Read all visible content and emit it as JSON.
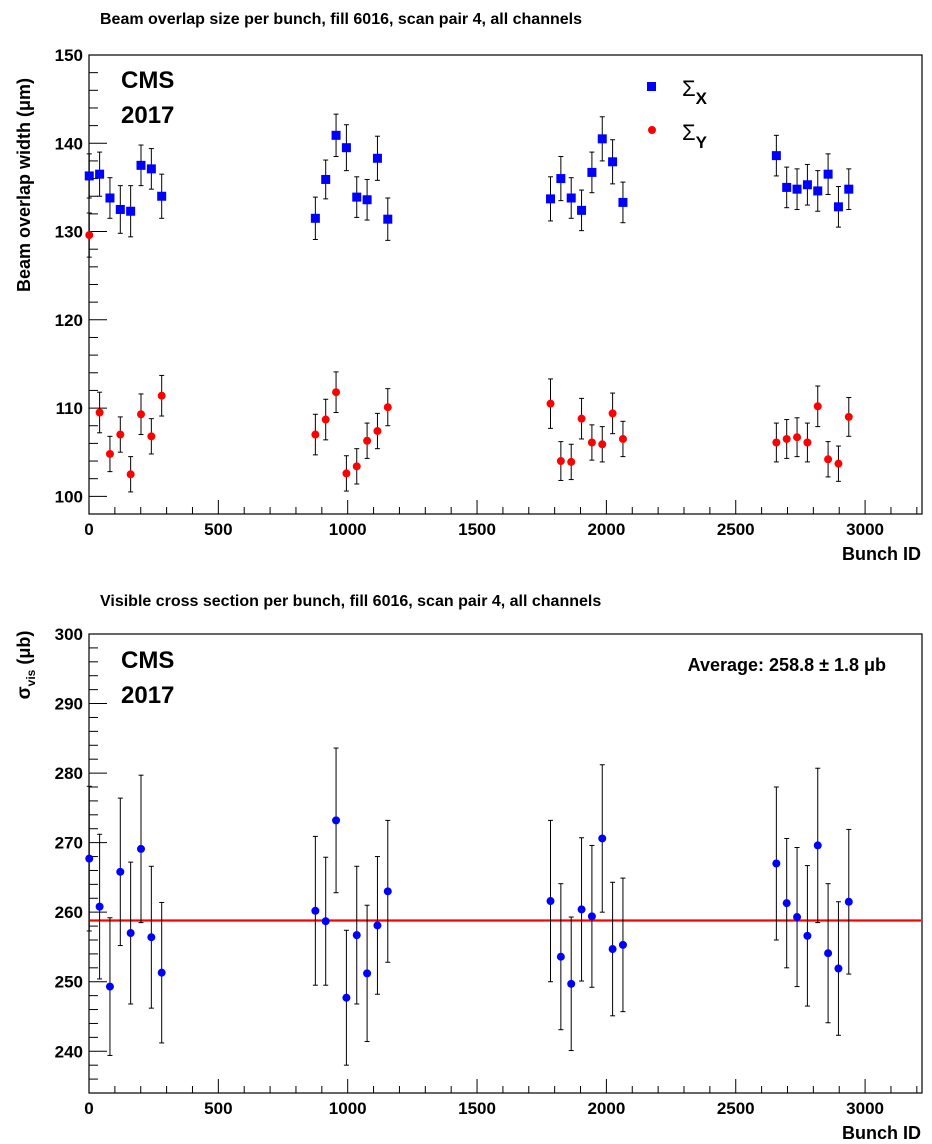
{
  "chart_data": [
    {
      "type": "scatter",
      "title": "Beam overlap size per bunch, fill 6016, scan pair 4, all channels",
      "xlabel": "Bunch ID",
      "ylabel": "Beam overlap width (μm)",
      "xlim": [
        0,
        3220
      ],
      "ylim": [
        98,
        150
      ],
      "xticks": [
        0,
        500,
        1000,
        1500,
        2000,
        2500,
        3000
      ],
      "yticks": [
        100,
        110,
        120,
        130,
        140,
        150
      ],
      "grid": false,
      "legend_position": "top-right",
      "experiment_label": [
        "CMS",
        "2017"
      ],
      "legend": [
        {
          "symbol": "Σ",
          "subscript": "X",
          "marker": "square",
          "color": "#0000ff"
        },
        {
          "symbol": "Σ",
          "subscript": "Y",
          "marker": "circle",
          "color": "#ff0000"
        }
      ],
      "series": [
        {
          "marker": "square",
          "color": "#0000ff",
          "points": [
            {
              "x": 1,
              "y": 136.3,
              "err": 2.5
            },
            {
              "x": 41,
              "y": 136.5,
              "err": 2.5
            },
            {
              "x": 81,
              "y": 133.8,
              "err": 2.3
            },
            {
              "x": 121,
              "y": 132.5,
              "err": 2.7
            },
            {
              "x": 161,
              "y": 132.3,
              "err": 2.9
            },
            {
              "x": 201,
              "y": 137.5,
              "err": 2.3
            },
            {
              "x": 241,
              "y": 137.1,
              "err": 2.3
            },
            {
              "x": 281,
              "y": 134.0,
              "err": 2.5
            },
            {
              "x": 875,
              "y": 131.5,
              "err": 2.4
            },
            {
              "x": 915,
              "y": 135.9,
              "err": 2.2
            },
            {
              "x": 955,
              "y": 140.9,
              "err": 2.4
            },
            {
              "x": 995,
              "y": 139.5,
              "err": 2.6
            },
            {
              "x": 1035,
              "y": 133.9,
              "err": 2.3
            },
            {
              "x": 1075,
              "y": 133.6,
              "err": 2.3
            },
            {
              "x": 1115,
              "y": 138.3,
              "err": 2.5
            },
            {
              "x": 1155,
              "y": 131.4,
              "err": 2.4
            },
            {
              "x": 1784,
              "y": 133.7,
              "err": 2.5
            },
            {
              "x": 1824,
              "y": 136.0,
              "err": 2.5
            },
            {
              "x": 1864,
              "y": 133.8,
              "err": 2.3
            },
            {
              "x": 1904,
              "y": 132.4,
              "err": 2.3
            },
            {
              "x": 1944,
              "y": 136.7,
              "err": 2.3
            },
            {
              "x": 1984,
              "y": 140.5,
              "err": 2.5
            },
            {
              "x": 2024,
              "y": 137.9,
              "err": 2.5
            },
            {
              "x": 2064,
              "y": 133.3,
              "err": 2.3
            },
            {
              "x": 2657,
              "y": 138.6,
              "err": 2.3
            },
            {
              "x": 2697,
              "y": 135.0,
              "err": 2.3
            },
            {
              "x": 2737,
              "y": 134.8,
              "err": 2.3
            },
            {
              "x": 2777,
              "y": 135.3,
              "err": 2.3
            },
            {
              "x": 2817,
              "y": 134.6,
              "err": 2.3
            },
            {
              "x": 2857,
              "y": 136.5,
              "err": 2.3
            },
            {
              "x": 2897,
              "y": 132.8,
              "err": 2.3
            },
            {
              "x": 2937,
              "y": 134.8,
              "err": 2.3
            }
          ]
        },
        {
          "marker": "circle",
          "color": "#ff0000",
          "points": [
            {
              "x": 1,
              "y": 129.6,
              "err": 2.5
            },
            {
              "x": 41,
              "y": 109.5,
              "err": 2.3
            },
            {
              "x": 81,
              "y": 104.8,
              "err": 2.0
            },
            {
              "x": 121,
              "y": 107.0,
              "err": 2.0
            },
            {
              "x": 161,
              "y": 102.5,
              "err": 2.0
            },
            {
              "x": 201,
              "y": 109.3,
              "err": 2.3
            },
            {
              "x": 241,
              "y": 106.8,
              "err": 2.0
            },
            {
              "x": 281,
              "y": 111.4,
              "err": 2.3
            },
            {
              "x": 875,
              "y": 107.0,
              "err": 2.3
            },
            {
              "x": 915,
              "y": 108.7,
              "err": 2.3
            },
            {
              "x": 955,
              "y": 111.8,
              "err": 2.3
            },
            {
              "x": 995,
              "y": 102.6,
              "err": 2.0
            },
            {
              "x": 1035,
              "y": 103.4,
              "err": 2.0
            },
            {
              "x": 1075,
              "y": 106.3,
              "err": 2.0
            },
            {
              "x": 1115,
              "y": 107.4,
              "err": 2.0
            },
            {
              "x": 1155,
              "y": 110.1,
              "err": 2.1
            },
            {
              "x": 1784,
              "y": 110.5,
              "err": 2.8
            },
            {
              "x": 1824,
              "y": 104.0,
              "err": 2.2
            },
            {
              "x": 1864,
              "y": 103.9,
              "err": 2.0
            },
            {
              "x": 1904,
              "y": 108.8,
              "err": 2.3
            },
            {
              "x": 1944,
              "y": 106.1,
              "err": 2.0
            },
            {
              "x": 1984,
              "y": 105.9,
              "err": 2.0
            },
            {
              "x": 2024,
              "y": 109.4,
              "err": 2.3
            },
            {
              "x": 2064,
              "y": 106.5,
              "err": 2.0
            },
            {
              "x": 2657,
              "y": 106.1,
              "err": 2.2
            },
            {
              "x": 2697,
              "y": 106.5,
              "err": 2.2
            },
            {
              "x": 2737,
              "y": 106.7,
              "err": 2.2
            },
            {
              "x": 2777,
              "y": 106.1,
              "err": 2.2
            },
            {
              "x": 2817,
              "y": 110.2,
              "err": 2.3
            },
            {
              "x": 2857,
              "y": 104.2,
              "err": 2.0
            },
            {
              "x": 2897,
              "y": 103.7,
              "err": 2.0
            },
            {
              "x": 2937,
              "y": 109.0,
              "err": 2.2
            }
          ]
        }
      ]
    },
    {
      "type": "scatter",
      "title": "Visible cross section per bunch, fill 6016, scan pair 4, all channels",
      "xlabel": "Bunch ID",
      "ylabel_symbol": "σ",
      "ylabel_subscript": "vis",
      "ylabel_unit": " (μb)",
      "xlim": [
        0,
        3220
      ],
      "ylim": [
        234,
        300
      ],
      "xticks": [
        0,
        500,
        1000,
        1500,
        2000,
        2500,
        3000
      ],
      "yticks": [
        240,
        250,
        260,
        270,
        280,
        290,
        300
      ],
      "grid": false,
      "experiment_label": [
        "CMS",
        "2017"
      ],
      "average_label": "Average: 258.8 ± 1.8 μb",
      "average_value": 258.8,
      "average_color": "#ff0000",
      "series": [
        {
          "marker": "circle",
          "color": "#0000ff",
          "points": [
            {
              "x": 1,
              "y": 267.7,
              "err": 10.4
            },
            {
              "x": 41,
              "y": 260.8,
              "err": 10.4
            },
            {
              "x": 81,
              "y": 249.3,
              "err": 9.9
            },
            {
              "x": 121,
              "y": 265.8,
              "err": 10.6
            },
            {
              "x": 161,
              "y": 257.0,
              "err": 10.2
            },
            {
              "x": 201,
              "y": 269.1,
              "err": 10.6
            },
            {
              "x": 241,
              "y": 256.4,
              "err": 10.2
            },
            {
              "x": 281,
              "y": 251.3,
              "err": 10.1
            },
            {
              "x": 875,
              "y": 260.2,
              "err": 10.7
            },
            {
              "x": 915,
              "y": 258.7,
              "err": 9.2
            },
            {
              "x": 955,
              "y": 273.2,
              "err": 10.4
            },
            {
              "x": 995,
              "y": 247.7,
              "err": 9.7
            },
            {
              "x": 1035,
              "y": 256.7,
              "err": 9.9
            },
            {
              "x": 1075,
              "y": 251.2,
              "err": 9.8
            },
            {
              "x": 1115,
              "y": 258.1,
              "err": 9.9
            },
            {
              "x": 1155,
              "y": 263.0,
              "err": 10.2
            },
            {
              "x": 1784,
              "y": 261.6,
              "err": 11.6
            },
            {
              "x": 1824,
              "y": 253.6,
              "err": 10.5
            },
            {
              "x": 1864,
              "y": 249.7,
              "err": 9.6
            },
            {
              "x": 1904,
              "y": 260.4,
              "err": 10.3
            },
            {
              "x": 1944,
              "y": 259.4,
              "err": 10.2
            },
            {
              "x": 1984,
              "y": 270.6,
              "err": 10.6
            },
            {
              "x": 2024,
              "y": 254.7,
              "err": 9.6
            },
            {
              "x": 2064,
              "y": 255.3,
              "err": 9.6
            },
            {
              "x": 2657,
              "y": 267.0,
              "err": 11.0
            },
            {
              "x": 2697,
              "y": 261.3,
              "err": 9.3
            },
            {
              "x": 2737,
              "y": 259.3,
              "err": 10.0
            },
            {
              "x": 2777,
              "y": 256.6,
              "err": 10.1
            },
            {
              "x": 2817,
              "y": 269.6,
              "err": 11.1
            },
            {
              "x": 2857,
              "y": 254.1,
              "err": 10.0
            },
            {
              "x": 2897,
              "y": 251.9,
              "err": 9.6
            },
            {
              "x": 2937,
              "y": 261.5,
              "err": 10.4
            }
          ]
        }
      ]
    }
  ]
}
